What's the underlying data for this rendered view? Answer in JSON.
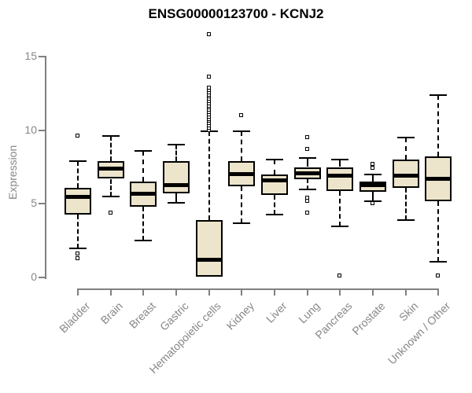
{
  "chart_data": {
    "type": "boxplot",
    "title": "ENSG00000123700 - KCNJ2",
    "ylabel": "Expression",
    "xlabel": "",
    "ylim": [
      0,
      15
    ],
    "yticks": [
      0,
      5,
      10,
      15
    ],
    "grid": false,
    "legend": "none",
    "box_fill_color": "#ece5cb",
    "box_line_color": "#000000",
    "axis_color": "#808080",
    "label_color": "#878787",
    "categories": [
      {
        "label": "Bladder",
        "q1": 4.3,
        "median": 5.5,
        "q3": 6.1,
        "whisker_low": 2.0,
        "whisker_high": 7.9,
        "outliers": [
          9.6,
          1.6,
          1.3
        ]
      },
      {
        "label": "Brain",
        "q1": 6.7,
        "median": 7.4,
        "q3": 7.9,
        "whisker_low": 5.5,
        "whisker_high": 9.6,
        "outliers": [
          4.4
        ]
      },
      {
        "label": "Breast",
        "q1": 4.8,
        "median": 5.7,
        "q3": 6.5,
        "whisker_low": 2.5,
        "whisker_high": 8.6,
        "outliers": []
      },
      {
        "label": "Gastric",
        "q1": 5.7,
        "median": 6.3,
        "q3": 7.9,
        "whisker_low": 5.1,
        "whisker_high": 9.0,
        "outliers": []
      },
      {
        "label": "Hematopoietic cells",
        "q1": 0.05,
        "median": 1.2,
        "q3": 3.9,
        "whisker_low": 0.05,
        "whisker_high": 9.9,
        "outliers": [
          10.0,
          10.15,
          10.3,
          10.45,
          10.6,
          10.75,
          10.9,
          11.05,
          11.2,
          11.35,
          11.5,
          11.65,
          11.8,
          11.95,
          12.1,
          12.25,
          12.4,
          12.55,
          12.7,
          12.85,
          13.6,
          16.5
        ]
      },
      {
        "label": "Kidney",
        "q1": 6.2,
        "median": 7.0,
        "q3": 7.9,
        "whisker_low": 3.7,
        "whisker_high": 9.9,
        "outliers": [
          11.0
        ]
      },
      {
        "label": "Liver",
        "q1": 5.6,
        "median": 6.6,
        "q3": 7.0,
        "whisker_low": 4.3,
        "whisker_high": 8.0,
        "outliers": []
      },
      {
        "label": "Lung",
        "q1": 6.7,
        "median": 7.1,
        "q3": 7.5,
        "whisker_low": 6.0,
        "whisker_high": 8.1,
        "outliers": [
          9.5,
          8.7,
          5.4,
          5.2,
          4.4
        ]
      },
      {
        "label": "Pancreas",
        "q1": 5.9,
        "median": 6.9,
        "q3": 7.5,
        "whisker_low": 3.5,
        "whisker_high": 8.0,
        "outliers": [
          0.1
        ]
      },
      {
        "label": "Prostate",
        "q1": 5.8,
        "median": 6.3,
        "q3": 6.5,
        "whisker_low": 5.2,
        "whisker_high": 7.0,
        "outliers": [
          7.7,
          7.4,
          5.0
        ]
      },
      {
        "label": "Skin",
        "q1": 6.1,
        "median": 6.9,
        "q3": 8.0,
        "whisker_low": 3.9,
        "whisker_high": 9.5,
        "outliers": []
      },
      {
        "label": "Unknown / Other",
        "q1": 5.2,
        "median": 6.7,
        "q3": 8.2,
        "whisker_low": 1.1,
        "whisker_high": 12.4,
        "outliers": [
          0.1
        ]
      }
    ]
  }
}
